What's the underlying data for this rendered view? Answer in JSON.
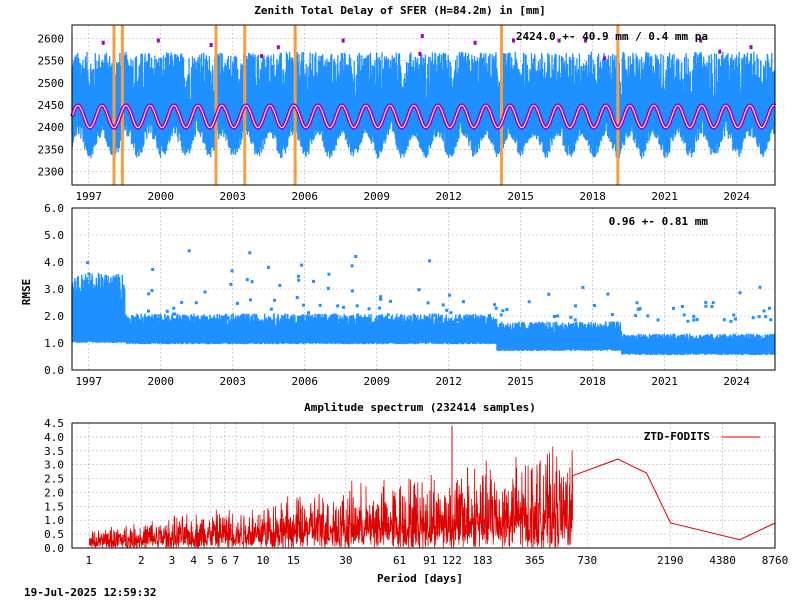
{
  "footer": {
    "timestamp": "19-Jul-2025 12:59:32"
  },
  "colors": {
    "obs": "#1e90ff",
    "model": "#a000c0",
    "model_hl": "#ffffff",
    "event": "#f5a040",
    "spectrum": "#dd0000"
  },
  "chart_data": [
    {
      "type": "scatter",
      "title": "Zenith Total Delay of SFER (H=84.2m) in [mm]",
      "annotation": "2424.0 +-  40.9 mm /  0.4 mm pa",
      "xlabel": "",
      "ylabel": "",
      "xlim": [
        1996.3,
        2025.6
      ],
      "ylim": [
        2270,
        2630
      ],
      "xticks": [
        1997,
        2000,
        2003,
        2006,
        2009,
        2012,
        2015,
        2018,
        2021,
        2024
      ],
      "yticks": [
        2300,
        2350,
        2400,
        2450,
        2500,
        2550,
        2600
      ],
      "grid": true,
      "mean": 2424.0,
      "std": 40.9,
      "trend_mm_pa": 0.4,
      "seasonal_amplitude": 25,
      "envelope": {
        "low": 2345,
        "high": 2560
      },
      "event_lines_years": [
        1998.05,
        1998.4,
        2002.3,
        2003.5,
        2005.6,
        2014.2,
        2019.05
      ],
      "series": [
        {
          "values_summary": "daily ZTD observations, 1996.3-2025.6"
        },
        {
          "values_summary": "seasonal model fit"
        }
      ]
    },
    {
      "type": "scatter",
      "title": "",
      "annotation": "0.96 +-  0.81 mm",
      "ylabel": "RMSE",
      "xlim": [
        1996.3,
        2025.6
      ],
      "ylim": [
        0,
        6
      ],
      "xticks": [
        1997,
        2000,
        2003,
        2006,
        2009,
        2012,
        2015,
        2018,
        2021,
        2024
      ],
      "yticks": [
        0.0,
        1.0,
        2.0,
        3.0,
        4.0,
        5.0,
        6.0
      ],
      "yticklabels": [
        "0.0",
        "1.0",
        "2.0",
        "3.0",
        "4.0",
        "5.0",
        "6.0"
      ],
      "grid": true,
      "mean": 0.96,
      "std": 0.81,
      "series": [
        {
          "values_summary": "RMSE per solution"
        }
      ]
    },
    {
      "type": "line",
      "title": "Amplitude spectrum (232414 samples)",
      "xlabel": "Period [days]",
      "ylabel": "",
      "xscale": "log",
      "xlim": [
        0.8,
        8760
      ],
      "ylim": [
        0,
        4.5
      ],
      "xticks": [
        1,
        2,
        3,
        4,
        5,
        6,
        7,
        10,
        15,
        30,
        61,
        91,
        122,
        183,
        365,
        730,
        2190,
        4380,
        8760
      ],
      "xticklabels": [
        "1",
        "2",
        "3",
        "4",
        "5",
        "6",
        "7",
        "10",
        "15",
        "30",
        "61",
        "91",
        "122",
        "183",
        "365",
        "730",
        "2190",
        "4380",
        "8760"
      ],
      "yticks": [
        0,
        0.5,
        1.0,
        1.5,
        2.0,
        2.5,
        3.0,
        3.5,
        4.0,
        4.5
      ],
      "yticklabels": [
        "0.0",
        "0.5",
        "1.0",
        "1.5",
        "2.0",
        "2.5",
        "3.0",
        "3.5",
        "4.0",
        "4.5"
      ],
      "grid": true,
      "legend_position": "top-right",
      "series": [
        {
          "name": "ZTD-FODITS"
        }
      ],
      "peaks": [
        {
          "period": 122,
          "amplitude": 4.4
        },
        {
          "period": 1095,
          "amplitude": 3.2
        },
        {
          "period": 1600,
          "amplitude": 2.7
        },
        {
          "period": 600,
          "amplitude": 2.6
        },
        {
          "period": 150,
          "amplitude": 2.9
        },
        {
          "period": 183,
          "amplitude": 1.9
        },
        {
          "period": 2200,
          "amplitude": 0.9
        },
        {
          "period": 5500,
          "amplitude": 0.3
        },
        {
          "period": 8760,
          "amplitude": 0.9
        }
      ]
    }
  ]
}
